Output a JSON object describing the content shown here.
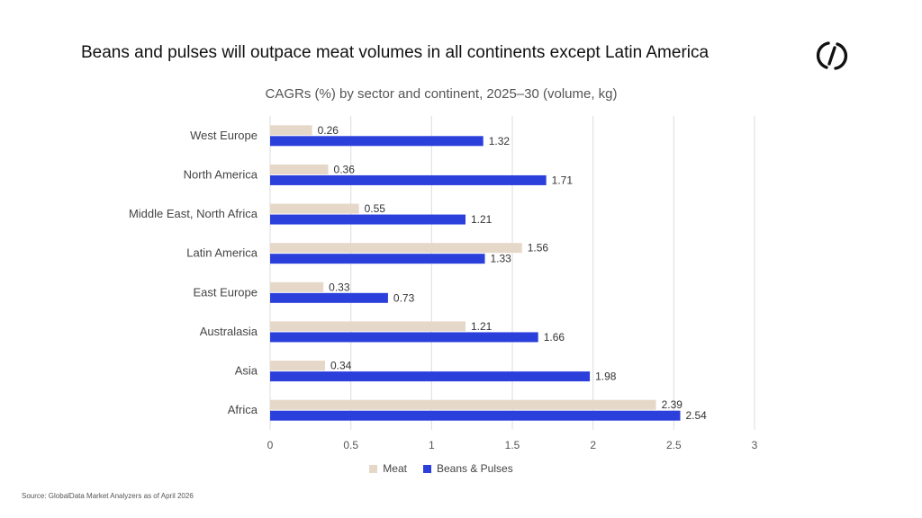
{
  "header": {
    "title": "Beans and pulses will outpace meat volumes in all continents except Latin America",
    "subtitle": "CAGRs (%) by sector and continent, 2025–30 (volume, kg)",
    "logo_icon": "globaldata-logo-icon"
  },
  "footer": {
    "source": "Source: GlobalData Market Analyzers as of April 2026"
  },
  "chart_data": {
    "type": "bar",
    "orientation": "horizontal",
    "categories": [
      "West Europe",
      "North America",
      "Middle East, North Africa",
      "Latin America",
      "East Europe",
      "Australasia",
      "Asia",
      "Africa"
    ],
    "series": [
      {
        "name": "Meat",
        "color": "#e6d8c8",
        "values": [
          0.26,
          0.36,
          0.55,
          1.56,
          0.33,
          1.21,
          0.34,
          2.39
        ]
      },
      {
        "name": "Beans & Pulses",
        "color": "#2b3fdb",
        "values": [
          1.32,
          1.71,
          1.21,
          1.33,
          0.73,
          1.66,
          1.98,
          2.54
        ]
      }
    ],
    "xlim": [
      0,
      3
    ],
    "xticks": [
      "0",
      "0.5",
      "1",
      "1.5",
      "2",
      "2.5",
      "3"
    ],
    "grid": true,
    "legend_position": "bottom"
  }
}
